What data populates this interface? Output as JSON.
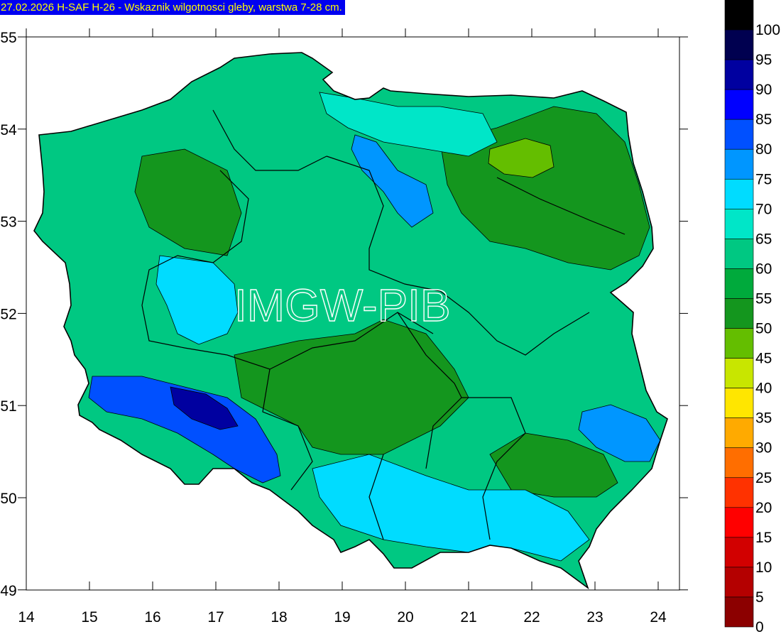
{
  "title": "27.02.2026 H-SAF H-26 - Wskaznik wilgotnosci gleby, warstwa 7-28 cm.",
  "watermark": "IMGW-PIB",
  "axes": {
    "x_ticks": [
      "14",
      "15",
      "16",
      "17",
      "18",
      "19",
      "20",
      "21",
      "22",
      "23",
      "24"
    ],
    "y_ticks": [
      "55",
      "54",
      "53",
      "52",
      "51",
      "50",
      "49"
    ]
  },
  "legend": {
    "labels": [
      "100",
      "95",
      "90",
      "85",
      "80",
      "75",
      "70",
      "65",
      "60",
      "55",
      "50",
      "45",
      "40",
      "35",
      "30",
      "25",
      "20",
      "15",
      "10",
      "5",
      "0"
    ],
    "colors": [
      "#000000",
      "#000050",
      "#0000a0",
      "#0000ff",
      "#0050ff",
      "#0096ff",
      "#00dcff",
      "#00e6c8",
      "#00c882",
      "#00aa3c",
      "#14961e",
      "#64be00",
      "#c8e600",
      "#ffe600",
      "#ffaa00",
      "#ff6e00",
      "#ff3200",
      "#ff0000",
      "#d20000",
      "#b40000",
      "#8c0000"
    ]
  },
  "regions": {
    "base_color": "#00c882",
    "areas": [
      {
        "name": "dry-zone-center",
        "color": "#14961e"
      },
      {
        "name": "dry-zone-northeast",
        "color": "#14961e"
      },
      {
        "name": "dry-zone-southeast",
        "color": "#14961e"
      },
      {
        "name": "dry-zone-northwest",
        "color": "#14961e"
      },
      {
        "name": "moist-zone-west",
        "color": "#00dcff"
      },
      {
        "name": "moist-zone-southwest",
        "color": "#0050ff"
      },
      {
        "name": "moist-zone-south",
        "color": "#00dcff"
      },
      {
        "name": "moist-zone-north",
        "color": "#00e6c8"
      },
      {
        "name": "moist-zone-east",
        "color": "#0096ff"
      },
      {
        "name": "wet-zone-sudetes",
        "color": "#0000a0"
      },
      {
        "name": "moist-zone-pomerania",
        "color": "#0096ff"
      },
      {
        "name": "driest-zone-masuria",
        "color": "#64be00"
      }
    ]
  }
}
